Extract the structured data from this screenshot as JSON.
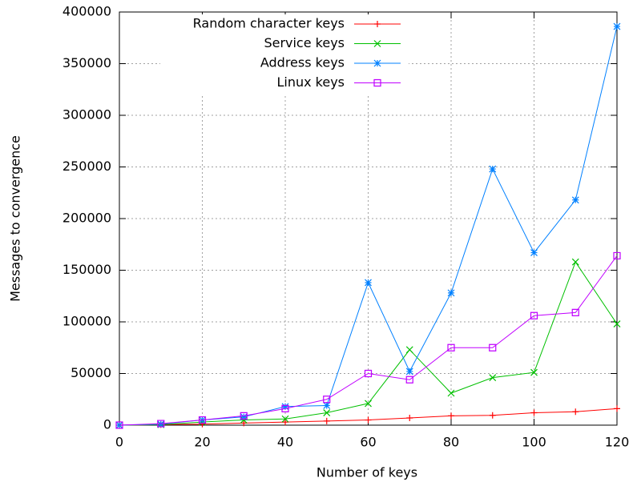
{
  "chart_data": {
    "type": "line",
    "xlabel": "Number of keys",
    "ylabel": "Messages to convergence",
    "x": [
      0,
      10,
      20,
      30,
      40,
      50,
      60,
      70,
      80,
      90,
      100,
      110,
      120
    ],
    "series": [
      {
        "name": "Random character keys",
        "color": "#ff0000",
        "marker": "plus",
        "values": [
          0,
          500,
          1000,
          2000,
          3000,
          4000,
          5000,
          7000,
          9000,
          9500,
          12000,
          13000,
          16000
        ]
      },
      {
        "name": "Service keys",
        "color": "#00c000",
        "marker": "cross",
        "values": [
          0,
          500,
          3000,
          5000,
          6000,
          12000,
          21000,
          73000,
          31000,
          46000,
          51000,
          158000,
          98000
        ]
      },
      {
        "name": "Address keys",
        "color": "#0080ff",
        "marker": "star",
        "values": [
          0,
          1000,
          5000,
          8000,
          18000,
          19000,
          138000,
          52000,
          128000,
          248000,
          167000,
          218000,
          386000
        ]
      },
      {
        "name": "Linux keys",
        "color": "#c000ff",
        "marker": "square",
        "values": [
          0,
          1500,
          5000,
          9000,
          16000,
          25000,
          50000,
          44000,
          75000,
          75000,
          106000,
          109000,
          164000
        ]
      }
    ],
    "xlim": [
      0,
      120
    ],
    "xticks": [
      0,
      20,
      40,
      60,
      80,
      100,
      120
    ],
    "ylim": [
      0,
      400000
    ],
    "yticks": [
      0,
      50000,
      100000,
      150000,
      200000,
      250000,
      300000,
      350000,
      400000
    ],
    "grid": true
  }
}
